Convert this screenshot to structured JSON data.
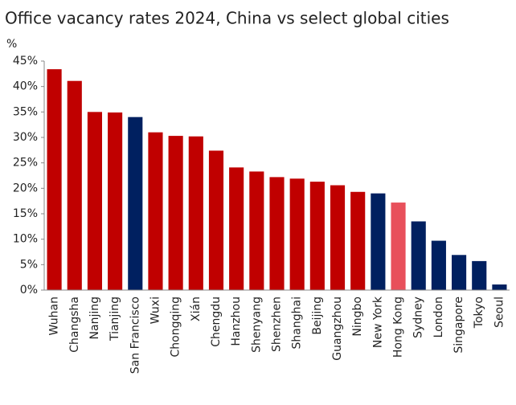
{
  "chart_data": {
    "type": "bar",
    "title": "Office vacancy rates 2024, China vs select global cities",
    "y_label": "%",
    "categories": [
      "Wuhan",
      "Changsha",
      "Nanjing",
      "Tianjing",
      "San Francisco",
      "Wuxi",
      "Chongqing",
      "Xián",
      "Chengdu",
      "Hanzhou",
      "Shenyang",
      "Shenzhen",
      "Shanghai",
      "Beijing",
      "Guangzhou",
      "Ningbo",
      "New York",
      "Hong Kong",
      "Sydney",
      "London",
      "Singapore",
      "Tokyo",
      "Seoul"
    ],
    "values": [
      43.4,
      41.1,
      35.0,
      34.9,
      34.0,
      31.0,
      30.3,
      30.2,
      27.4,
      24.1,
      23.3,
      22.2,
      21.9,
      21.3,
      20.6,
      19.3,
      19.0,
      17.2,
      13.5,
      9.7,
      6.9,
      5.7,
      1.1
    ],
    "colors": [
      "#c00000",
      "#c00000",
      "#c00000",
      "#c00000",
      "#002060",
      "#c00000",
      "#c00000",
      "#c00000",
      "#c00000",
      "#c00000",
      "#c00000",
      "#c00000",
      "#c00000",
      "#c00000",
      "#c00000",
      "#c00000",
      "#002060",
      "#e8505b",
      "#002060",
      "#002060",
      "#002060",
      "#002060",
      "#002060"
    ],
    "ylim": [
      0,
      45
    ],
    "yticks": [
      {
        "value": 0,
        "label": "0%"
      },
      {
        "value": 5,
        "label": "5%"
      },
      {
        "value": 10,
        "label": "10%"
      },
      {
        "value": 15,
        "label": "15%"
      },
      {
        "value": 20,
        "label": "20%"
      },
      {
        "value": 25,
        "label": "25%"
      },
      {
        "value": 30,
        "label": "30%"
      },
      {
        "value": 35,
        "label": "35%"
      },
      {
        "value": 40,
        "label": "40%"
      },
      {
        "value": 45,
        "label": "45%"
      }
    ],
    "grid": false
  }
}
